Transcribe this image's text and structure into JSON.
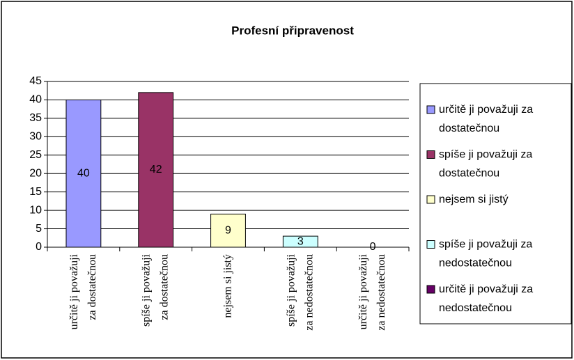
{
  "chart_data": {
    "type": "bar",
    "title": "Profesní připravenost",
    "categories": [
      "určitě ji považuji za dostatečnou",
      "spíše ji považuji za dostatečnou",
      "nejsem si jistý",
      "spíše ji považuji za nedostatečnou",
      "určitě ji považuji za nedostatečnou"
    ],
    "values": [
      40,
      42,
      9,
      3,
      0
    ],
    "colors": [
      "#9999ff",
      "#993366",
      "#ffffcc",
      "#ccffff",
      "#660066"
    ],
    "ylim": [
      0,
      45
    ],
    "yticks": [
      0,
      5,
      10,
      15,
      20,
      25,
      30,
      35,
      40,
      45
    ],
    "grid": true,
    "legend": "right"
  }
}
